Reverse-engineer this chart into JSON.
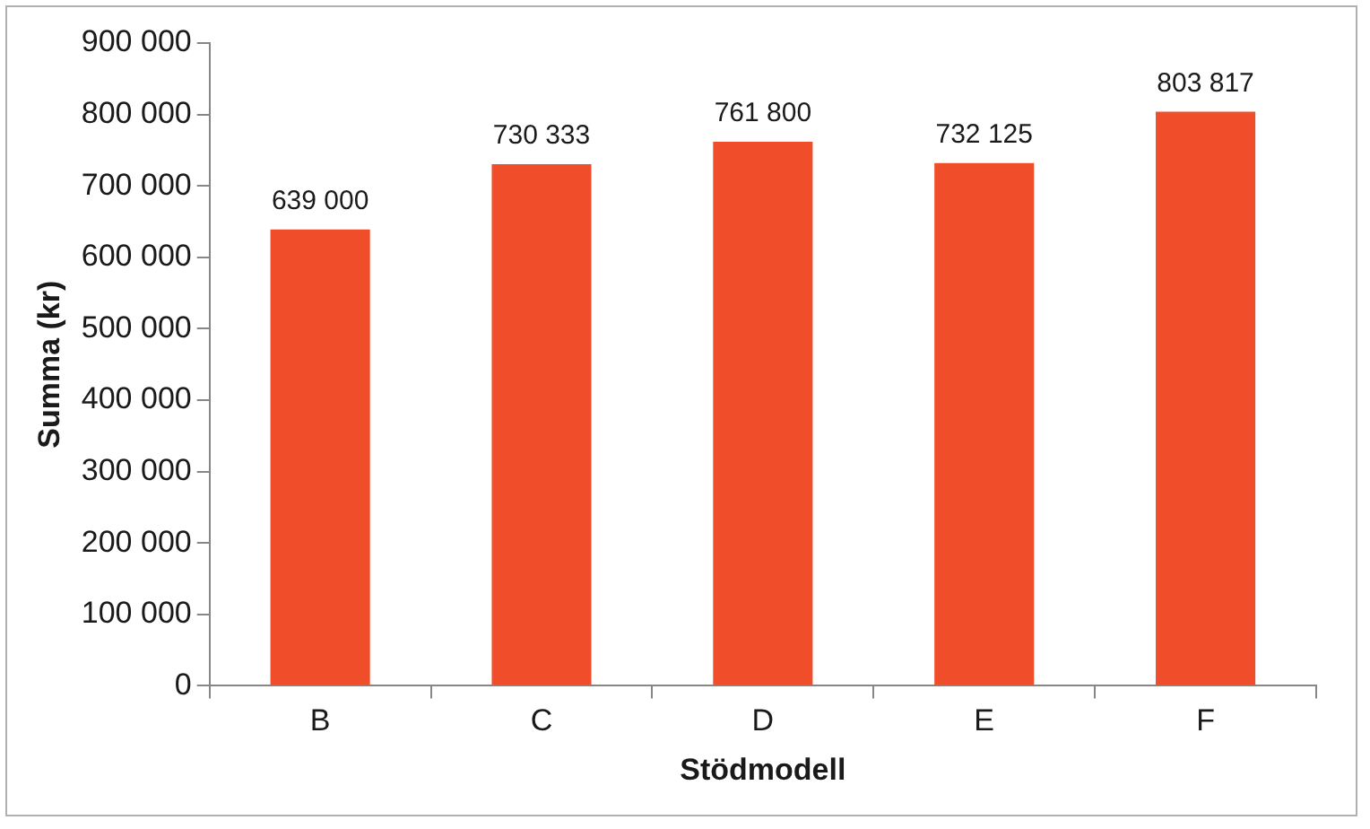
{
  "chart_data": {
    "type": "bar",
    "xlabel": "Stödmodell",
    "ylabel": "Summa (kr)",
    "categories": [
      "B",
      "C",
      "D",
      "E",
      "F"
    ],
    "values": [
      639000,
      730333,
      761800,
      732125,
      803817
    ],
    "value_labels": [
      "639 000",
      "730 333",
      "761 800",
      "732 125",
      "803 817"
    ],
    "color": "#f04e2b",
    "ylim": [
      0,
      900000
    ],
    "yticks": [
      {
        "value": 0,
        "label": "0"
      },
      {
        "value": 100000,
        "label": "100 000"
      },
      {
        "value": 200000,
        "label": "200 000"
      },
      {
        "value": 300000,
        "label": "300 000"
      },
      {
        "value": 400000,
        "label": "400 000"
      },
      {
        "value": 500000,
        "label": "500 000"
      },
      {
        "value": 600000,
        "label": "600 000"
      },
      {
        "value": 700000,
        "label": "700 000"
      },
      {
        "value": 800000,
        "label": "800 000"
      },
      {
        "value": 900000,
        "label": "900 000"
      }
    ],
    "grid": false,
    "legend": false
  }
}
